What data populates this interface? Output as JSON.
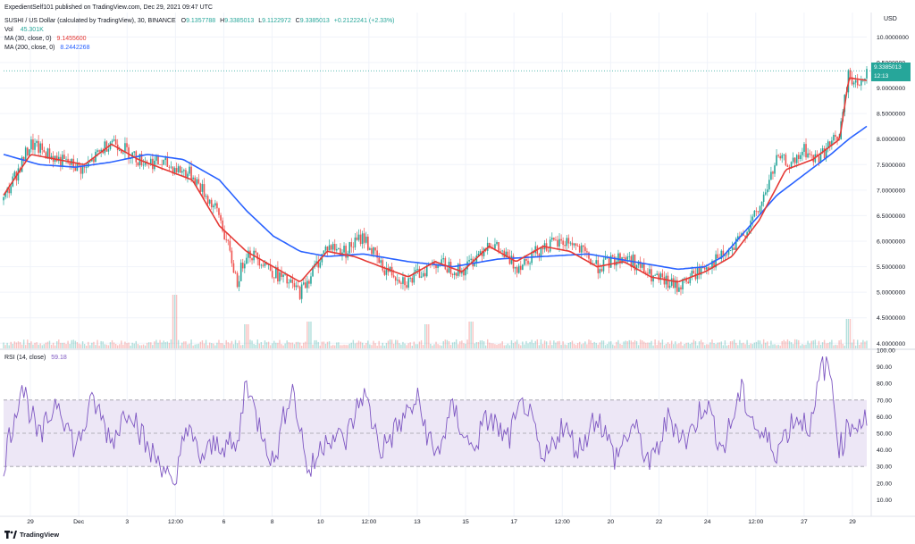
{
  "header": {
    "publisher": "ExpedientSelf101 published on TradingView.com, Dec 29, 2021 09:47 UTC",
    "symbol": "SUSHI / US Dollar (calculated by TradingView), 30, BINANCE",
    "o_label": "O",
    "o": "9.1357788",
    "h_label": "H",
    "h": "9.3385013",
    "l_label": "L",
    "l": "9.1122972",
    "c_label": "C",
    "c": "9.3385013",
    "change": "+0.2122241 (+2.33%)",
    "vol_label": "Vol",
    "vol": "45.301K",
    "ma30_label": "MA (30, close, 0)",
    "ma30": "9.1455600",
    "ma200_label": "MA (200, close, 0)",
    "ma200": "8.2442268",
    "rsi_label": "RSI (14, close)",
    "rsi": "59.18"
  },
  "price_tag": {
    "price": "9.3385013",
    "countdown": "12:13"
  },
  "currency": "USD",
  "logo_text": "TradingView",
  "colors": {
    "up": "#26a69a",
    "down": "#ef5350",
    "ma30": "#e53935",
    "ma200": "#2962ff",
    "rsi": "#7e57c2",
    "rsi_band": "#ede7f6",
    "grid": "#f0f3fa",
    "text": "#131722"
  },
  "chart_data": [
    {
      "type": "candlestick",
      "title": "SUSHI / US Dollar, 30, BINANCE",
      "price_axis_ticks": [
        "10.0000000",
        "9.5000000",
        "9.0000000",
        "8.5000000",
        "8.0000000",
        "7.5000000",
        "7.0000000",
        "6.5000000",
        "6.0000000",
        "5.5000000",
        "5.0000000",
        "4.5000000",
        "4.0000000"
      ],
      "ylim": [
        3.9,
        10.2
      ],
      "x_ticks": [
        "29",
        "Dec",
        "3",
        "12:00",
        "6",
        "8",
        "10",
        "12:00",
        "13",
        "15",
        "17",
        "12:00",
        "20",
        "22",
        "24",
        "12:00",
        "27",
        "29"
      ],
      "close_keypoints": {
        "x": [
          0,
          3,
          6,
          9,
          12,
          15,
          18,
          21,
          24,
          26,
          27,
          28,
          29,
          30,
          33,
          34,
          36,
          38,
          40,
          42,
          45,
          48,
          51,
          54,
          57,
          60,
          63,
          66,
          69,
          70,
          72,
          75,
          78,
          81,
          84,
          86,
          88,
          89,
          90,
          91,
          93,
          94,
          95,
          95.5,
          96
        ],
        "y": [
          6.8,
          7.9,
          7.6,
          7.4,
          8.0,
          7.6,
          7.5,
          7.3,
          6.5,
          5.2,
          5.8,
          5.7,
          5.6,
          5.4,
          5.0,
          5.3,
          5.9,
          5.8,
          6.1,
          5.5,
          5.2,
          5.6,
          5.4,
          6.0,
          5.5,
          5.9,
          6.0,
          5.5,
          5.7,
          5.6,
          5.3,
          5.1,
          5.5,
          5.8,
          6.6,
          7.6,
          7.5,
          7.8,
          7.6,
          7.7,
          8.1,
          9.3,
          9.0,
          9.2,
          9.34
        ]
      },
      "ma30": {
        "x": [
          0,
          3,
          6,
          9,
          12,
          15,
          18,
          21,
          24,
          27,
          30,
          33,
          36,
          39,
          42,
          45,
          48,
          51,
          54,
          57,
          60,
          63,
          66,
          69,
          72,
          75,
          78,
          81,
          84,
          87,
          90,
          93,
          94,
          96
        ],
        "y": [
          6.9,
          7.7,
          7.6,
          7.5,
          7.9,
          7.6,
          7.4,
          7.2,
          6.3,
          5.8,
          5.5,
          5.2,
          5.8,
          5.7,
          5.5,
          5.3,
          5.6,
          5.4,
          5.9,
          5.6,
          5.9,
          5.8,
          5.5,
          5.6,
          5.3,
          5.2,
          5.4,
          5.7,
          6.4,
          7.4,
          7.6,
          8.0,
          9.2,
          9.15
        ]
      },
      "ma200": {
        "x": [
          0,
          4,
          8,
          12,
          16,
          20,
          24,
          27,
          30,
          33,
          36,
          40,
          45,
          50,
          55,
          60,
          65,
          70,
          75,
          78,
          80,
          83,
          86,
          89,
          92,
          94,
          96
        ],
        "y": [
          7.7,
          7.5,
          7.45,
          7.55,
          7.7,
          7.6,
          7.2,
          6.6,
          6.1,
          5.8,
          5.7,
          5.75,
          5.6,
          5.5,
          5.65,
          5.7,
          5.75,
          5.6,
          5.45,
          5.5,
          5.7,
          6.3,
          6.9,
          7.3,
          7.7,
          8.0,
          8.25
        ]
      },
      "volume_spikes": [
        {
          "x": 19,
          "v": 1.0
        },
        {
          "x": 27,
          "v": 0.45
        },
        {
          "x": 34,
          "v": 0.5
        },
        {
          "x": 47,
          "v": 0.45
        },
        {
          "x": 52,
          "v": 0.5
        },
        {
          "x": 94,
          "v": 0.55
        }
      ]
    },
    {
      "type": "line",
      "title": "RSI (14, close)",
      "axis_ticks": [
        "100.00",
        "90.00",
        "80.00",
        "70.00",
        "60.00",
        "50.00",
        "40.00",
        "30.00",
        "20.00",
        "10.00"
      ],
      "ylim": [
        0,
        100
      ],
      "bands": [
        30,
        50,
        70
      ],
      "keypoints": {
        "x": [
          0,
          2,
          4,
          6,
          8,
          10,
          12,
          14,
          16,
          18,
          19,
          20,
          22,
          24,
          26,
          27,
          28,
          29,
          30,
          32,
          34,
          36,
          38,
          40,
          42,
          44,
          46,
          48,
          50,
          52,
          54,
          56,
          58,
          60,
          62,
          64,
          66,
          68,
          70,
          72,
          74,
          76,
          78,
          80,
          82,
          84,
          86,
          88,
          90,
          91,
          92,
          93,
          94,
          96
        ],
        "y": [
          32,
          80,
          45,
          72,
          40,
          70,
          45,
          68,
          40,
          30,
          10,
          55,
          35,
          45,
          40,
          85,
          60,
          50,
          30,
          80,
          25,
          50,
          45,
          75,
          40,
          55,
          70,
          35,
          65,
          40,
          60,
          45,
          70,
          30,
          55,
          40,
          62,
          35,
          55,
          30,
          60,
          45,
          70,
          40,
          75,
          50,
          40,
          60,
          55,
          92,
          85,
          40,
          55,
          59
        ]
      }
    }
  ]
}
